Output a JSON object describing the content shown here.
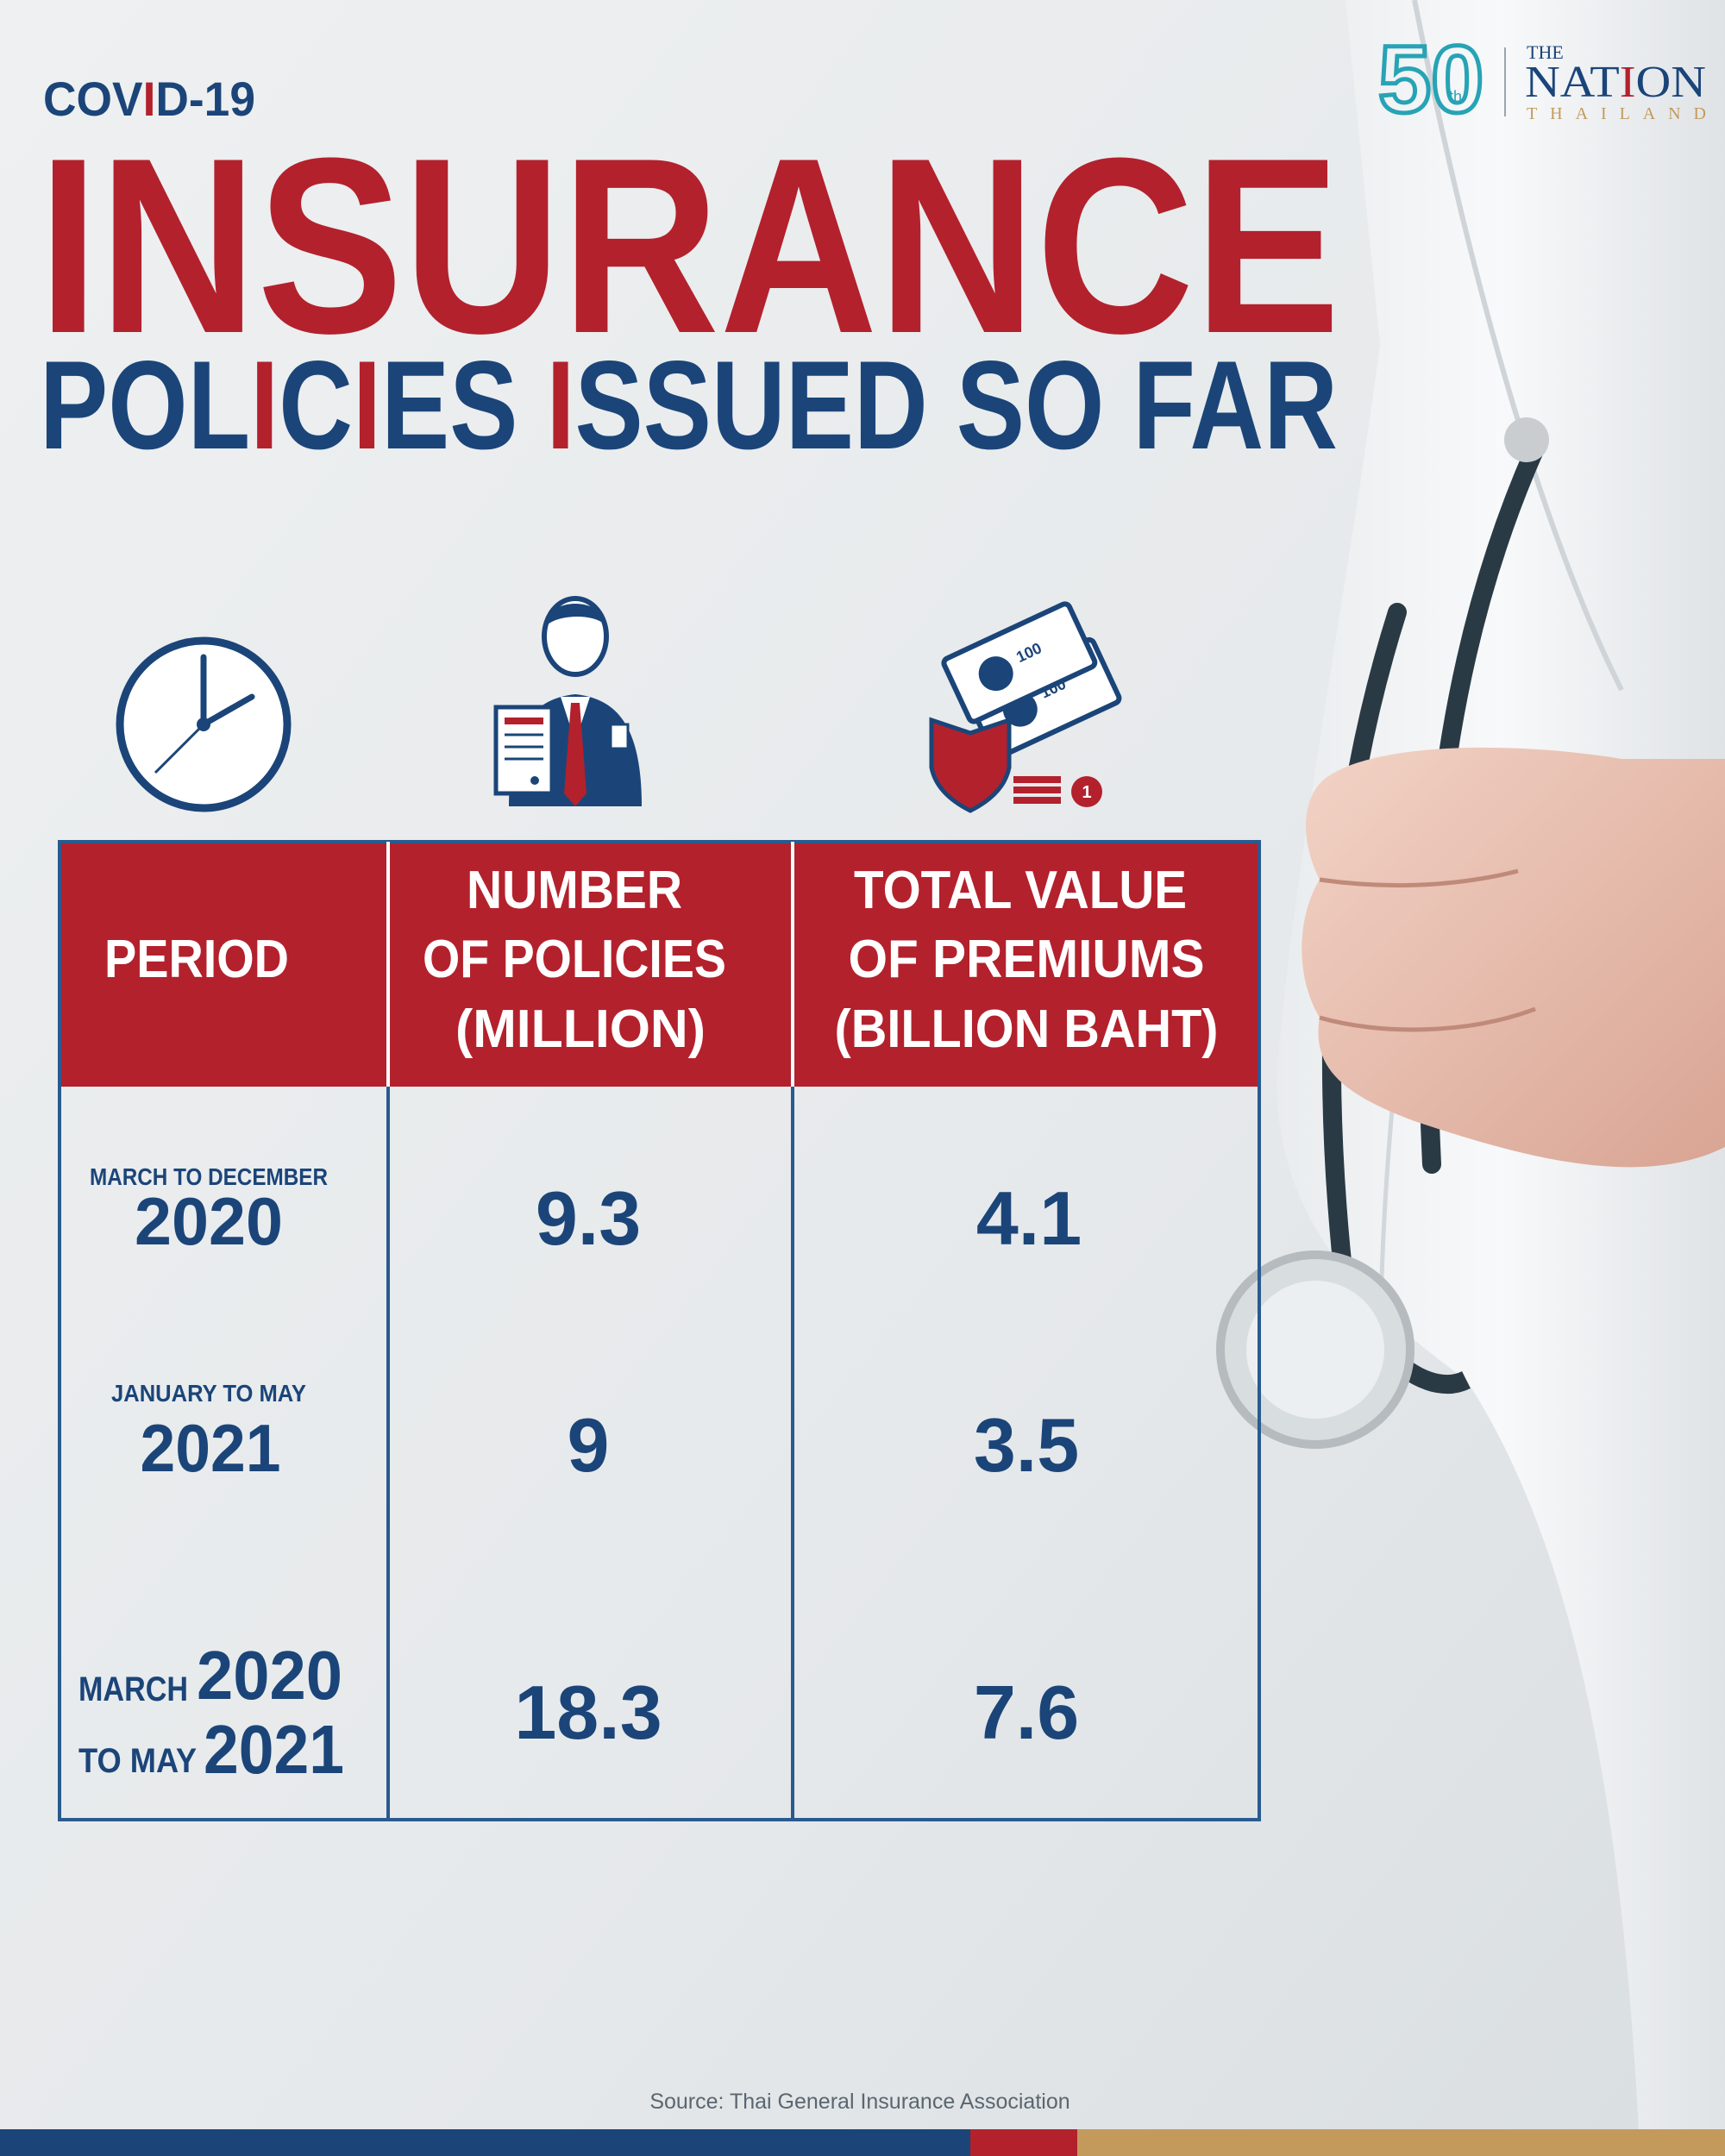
{
  "logo": {
    "anniversary": "50",
    "suffix": "th",
    "the": "THE",
    "name": "NATION",
    "country": "THAILAND"
  },
  "header": {
    "kicker": "COVID-19",
    "title": "INSURANCE",
    "subtitle": "POLICIES ISSUED SO FAR"
  },
  "icons": {
    "banknote": "100",
    "coin": "1"
  },
  "table": {
    "columns": [
      [
        "PERIOD"
      ],
      [
        "NUMBER",
        "OF POLICIES",
        "(MILLION)"
      ],
      [
        "TOTAL VALUE",
        "OF PREMIUMS",
        "(BILLION BAHT)"
      ]
    ],
    "rows": [
      [
        [
          "MARCH TO DECEMBER",
          "2020"
        ],
        9.3,
        4.1
      ],
      [
        [
          "JANUARY TO MAY",
          "2021"
        ],
        9,
        3.5
      ],
      [
        [
          "MARCH",
          "2020",
          "TO MAY",
          "2021"
        ],
        18.3,
        7.6
      ]
    ]
  },
  "source": "Source: Thai General Insurance Association"
}
